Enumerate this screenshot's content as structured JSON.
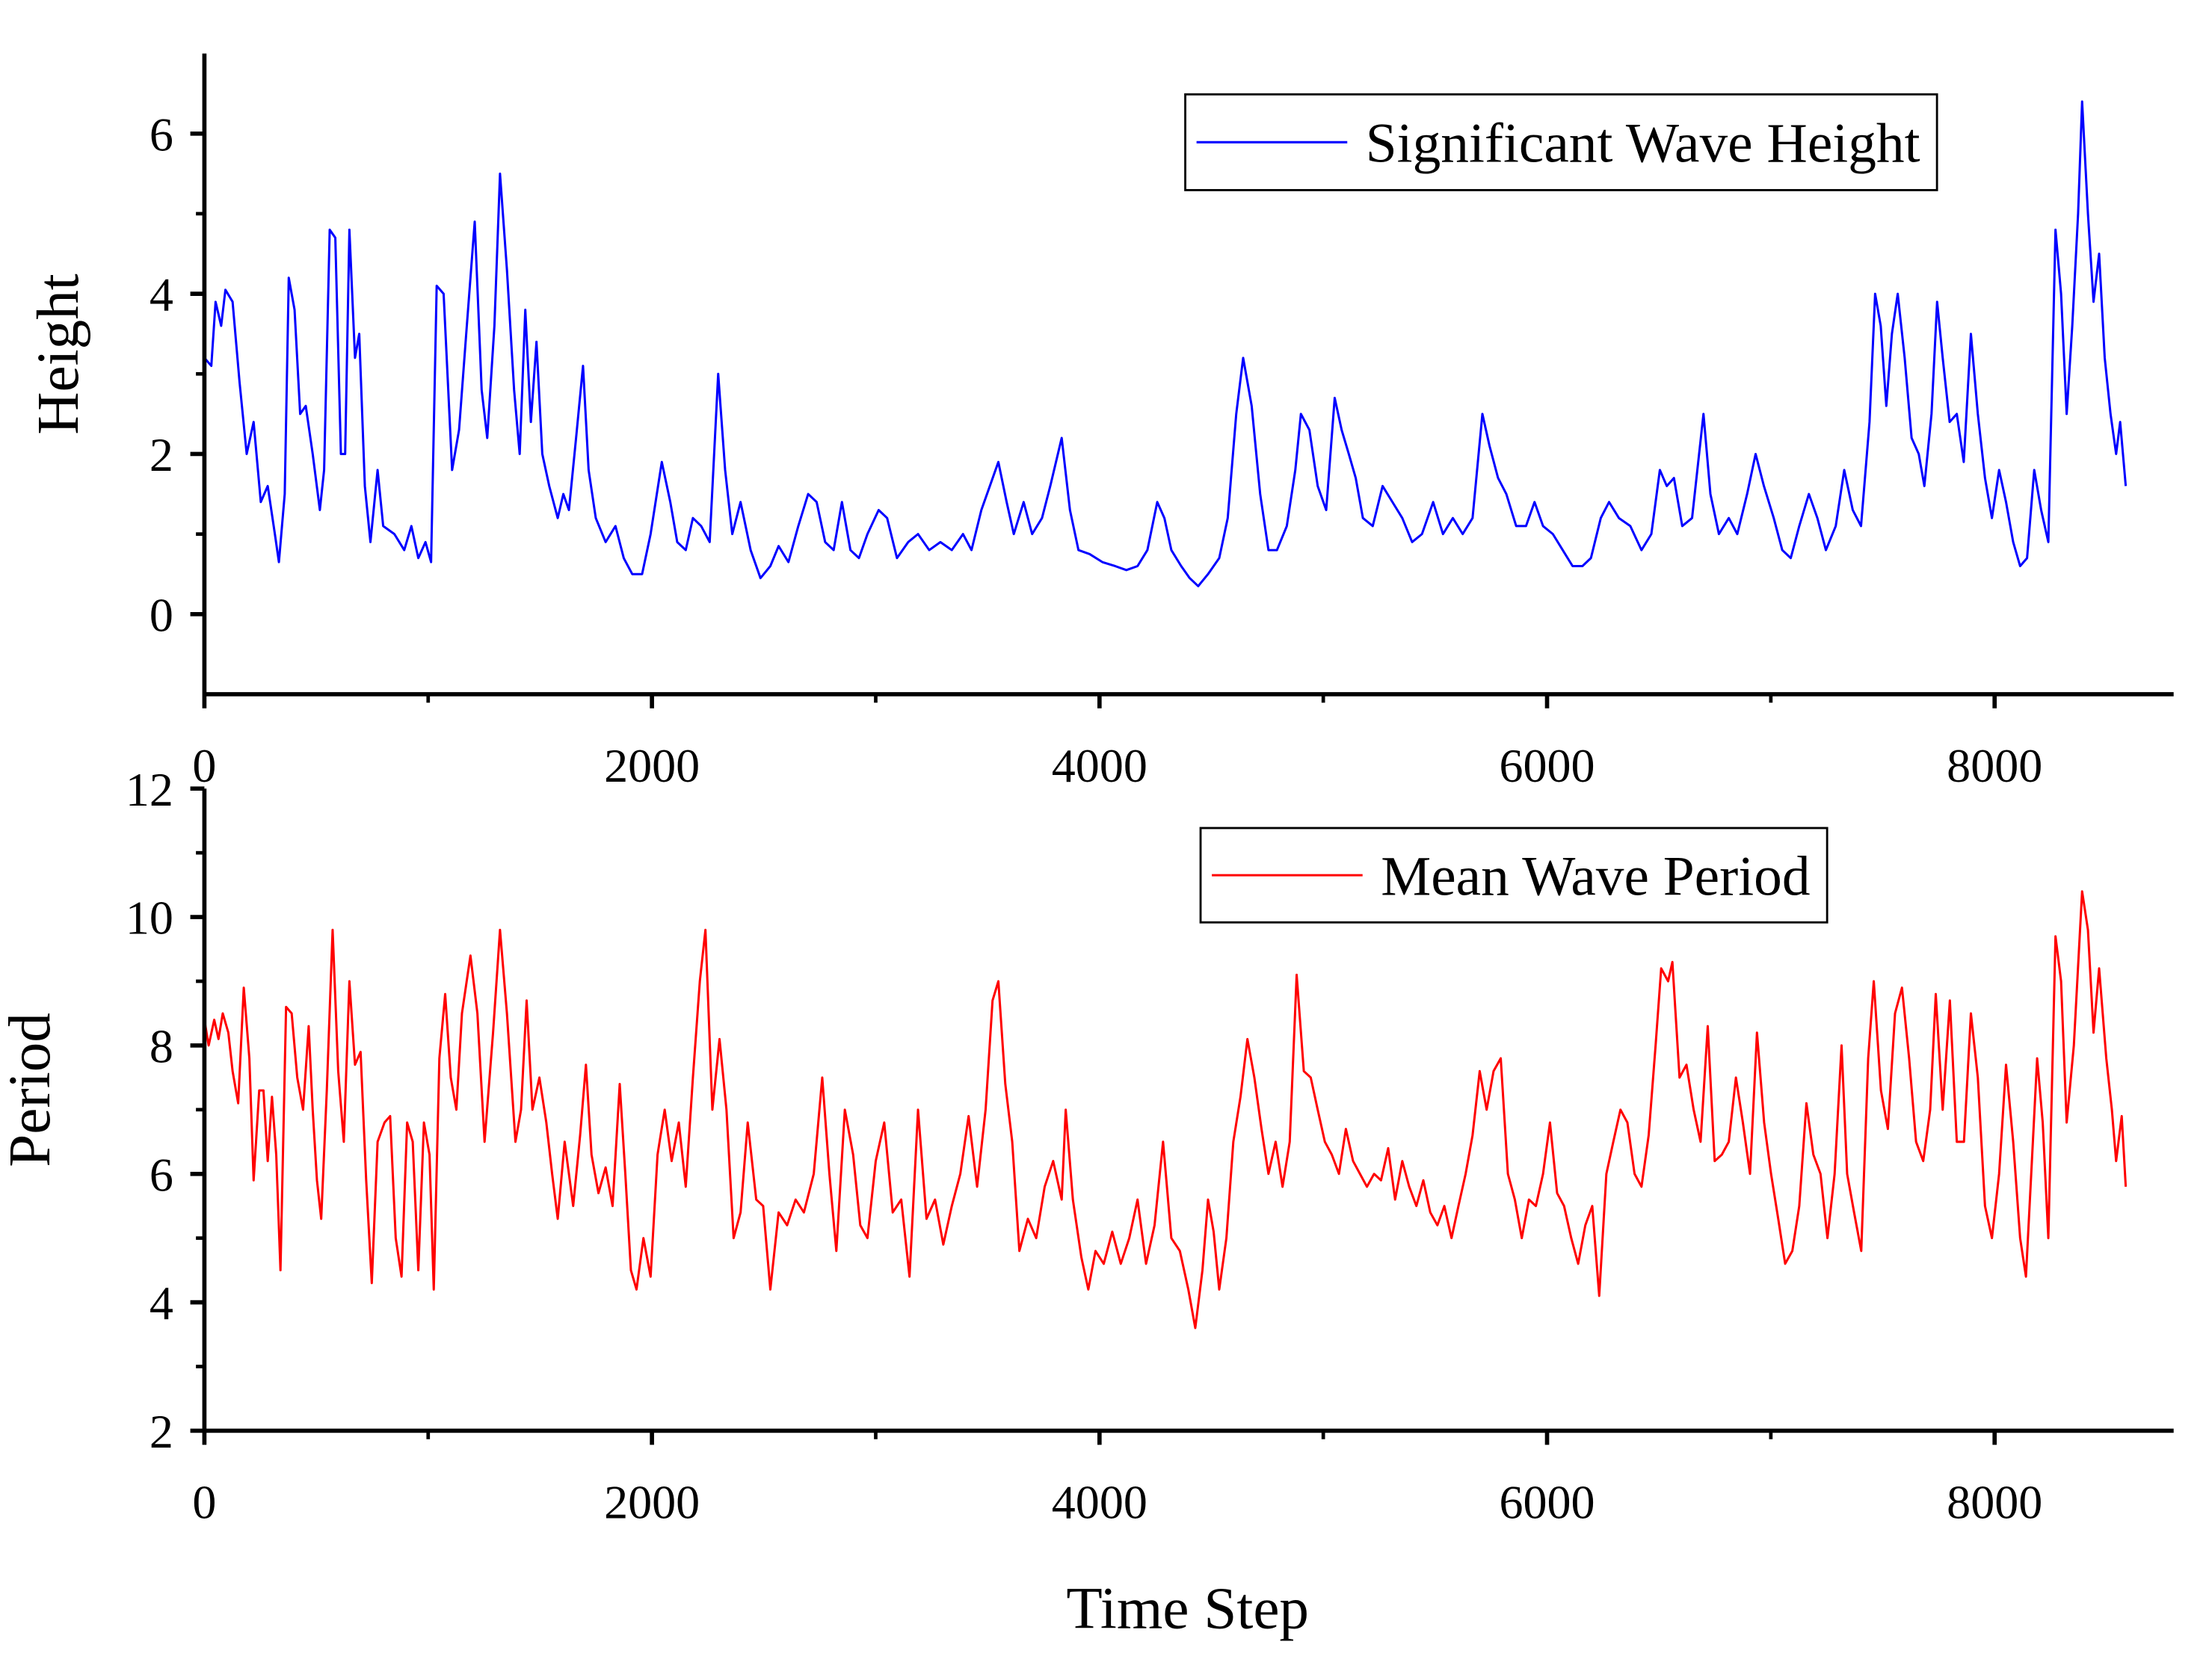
{
  "chart_data": [
    {
      "type": "line",
      "ylabel": "Height",
      "legend": "upper right",
      "xlim": [
        0,
        8800
      ],
      "xticks": [
        0,
        2000,
        4000,
        6000,
        8000
      ],
      "ylim": [
        -1,
        7
      ],
      "yticks": [
        0,
        2,
        4,
        6
      ],
      "x": [
        0,
        31,
        50,
        75,
        94,
        126,
        157,
        189,
        220,
        252,
        283,
        315,
        333,
        359,
        377,
        403,
        428,
        453,
        484,
        516,
        535,
        560,
        585,
        610,
        629,
        648,
        673,
        692,
        717,
        742,
        774,
        799,
        849,
        893,
        925,
        956,
        988,
        1013,
        1038,
        1069,
        1107,
        1138,
        1170,
        1208,
        1239,
        1264,
        1296,
        1321,
        1352,
        1384,
        1409,
        1434,
        1459,
        1484,
        1510,
        1541,
        1579,
        1604,
        1629,
        1661,
        1692,
        1717,
        1749,
        1793,
        1837,
        1874,
        1912,
        1956,
        1994,
        2044,
        2082,
        2113,
        2151,
        2183,
        2220,
        2258,
        2296,
        2327,
        2359,
        2396,
        2441,
        2485,
        2529,
        2566,
        2610,
        2654,
        2698,
        2736,
        2774,
        2812,
        2849,
        2887,
        2925,
        2963,
        3013,
        3051,
        3095,
        3145,
        3189,
        3239,
        3289,
        3340,
        3390,
        3428,
        3472,
        3510,
        3548,
        3585,
        3617,
        3661,
        3699,
        3743,
        3780,
        3831,
        3868,
        3906,
        3956,
        4013,
        4070,
        4120,
        4170,
        4214,
        4258,
        4290,
        4321,
        4365,
        4403,
        4441,
        4485,
        4535,
        4573,
        4611,
        4642,
        4680,
        4718,
        4755,
        4793,
        4837,
        4875,
        4900,
        4938,
        4975,
        5013,
        5051,
        5082,
        5114,
        5145,
        5177,
        5221,
        5265,
        5309,
        5353,
        5397,
        5441,
        5491,
        5535,
        5579,
        5623,
        5667,
        5711,
        5743,
        5781,
        5818,
        5862,
        5906,
        5944,
        5982,
        6026,
        6070,
        6114,
        6158,
        6196,
        6240,
        6277,
        6321,
        6372,
        6422,
        6466,
        6504,
        6535,
        6567,
        6604,
        6648,
        6699,
        6730,
        6768,
        6812,
        6850,
        6894,
        6932,
        6969,
        7013,
        7051,
        7089,
        7127,
        7170,
        7208,
        7246,
        7290,
        7328,
        7366,
        7403,
        7441,
        7466,
        7491,
        7516,
        7541,
        7567,
        7598,
        7629,
        7661,
        7686,
        7718,
        7743,
        7768,
        7799,
        7831,
        7862,
        7894,
        7925,
        7957,
        7988,
        8020,
        8051,
        8083,
        8114,
        8145,
        8177,
        8208,
        8240,
        8272,
        8297,
        8322,
        8347,
        8373,
        8391,
        8417,
        8442,
        8467,
        8492,
        8518,
        8543,
        8561,
        8586
      ],
      "series": [
        {
          "name": "Significant Wave Height",
          "color": "#0000ff",
          "values": [
            3.2,
            3.1,
            3.9,
            3.6,
            4.05,
            3.9,
            2.9,
            2.0,
            2.4,
            1.4,
            1.6,
            1.0,
            0.65,
            1.5,
            4.2,
            3.8,
            2.5,
            2.6,
            2.0,
            1.3,
            1.8,
            4.8,
            4.7,
            2.0,
            2.0,
            4.8,
            3.2,
            3.5,
            1.6,
            0.9,
            1.8,
            1.1,
            1.0,
            0.8,
            1.1,
            0.7,
            0.9,
            0.65,
            4.1,
            4.0,
            1.8,
            2.3,
            3.5,
            4.9,
            2.8,
            2.2,
            3.6,
            5.5,
            4.3,
            2.8,
            2.0,
            3.8,
            2.4,
            3.4,
            2.0,
            1.6,
            1.2,
            1.5,
            1.3,
            2.2,
            3.1,
            1.8,
            1.2,
            0.9,
            1.1,
            0.7,
            0.5,
            0.5,
            1.0,
            1.9,
            1.4,
            0.9,
            0.8,
            1.2,
            1.1,
            0.9,
            3.0,
            1.8,
            1.0,
            1.4,
            0.8,
            0.45,
            0.6,
            0.85,
            0.65,
            1.1,
            1.5,
            1.4,
            0.9,
            0.8,
            1.4,
            0.8,
            0.7,
            1.0,
            1.3,
            1.2,
            0.7,
            0.9,
            1.0,
            0.8,
            0.9,
            0.8,
            1.0,
            0.8,
            1.3,
            1.6,
            1.9,
            1.4,
            1.0,
            1.4,
            1.0,
            1.2,
            1.6,
            2.2,
            1.3,
            0.8,
            0.75,
            0.65,
            0.6,
            0.55,
            0.6,
            0.8,
            1.4,
            1.2,
            0.8,
            0.6,
            0.45,
            0.35,
            0.5,
            0.7,
            1.2,
            2.5,
            3.2,
            2.6,
            1.5,
            0.8,
            0.8,
            1.1,
            1.8,
            2.5,
            2.3,
            1.6,
            1.3,
            2.7,
            2.3,
            2.0,
            1.7,
            1.2,
            1.1,
            1.6,
            1.4,
            1.2,
            0.9,
            1.0,
            1.4,
            1.0,
            1.2,
            1.0,
            1.2,
            2.5,
            2.1,
            1.7,
            1.5,
            1.1,
            1.1,
            1.4,
            1.1,
            1.0,
            0.8,
            0.6,
            0.6,
            0.7,
            1.2,
            1.4,
            1.2,
            1.1,
            0.8,
            1.0,
            1.8,
            1.6,
            1.7,
            1.1,
            1.2,
            2.5,
            1.5,
            1.0,
            1.2,
            1.0,
            1.5,
            2.0,
            1.6,
            1.2,
            0.8,
            0.7,
            1.1,
            1.5,
            1.2,
            0.8,
            1.1,
            1.8,
            1.3,
            1.1,
            2.4,
            4.0,
            3.6,
            2.6,
            3.5,
            4.0,
            3.2,
            2.2,
            2.0,
            1.6,
            2.5,
            3.9,
            3.2,
            2.4,
            2.5,
            1.9,
            3.5,
            2.5,
            1.7,
            1.2,
            1.8,
            1.4,
            0.9,
            0.6,
            0.7,
            1.8,
            1.3,
            0.9,
            4.8,
            4.0,
            2.5,
            3.6,
            5.0,
            6.4,
            5.0,
            3.9,
            4.5,
            3.2,
            2.5,
            2.0,
            2.4,
            1.6
          ]
        }
      ]
    },
    {
      "type": "line",
      "ylabel": "Period",
      "xlabel": "Time Step",
      "legend": "upper right",
      "xlim": [
        0,
        8800
      ],
      "xticks": [
        0,
        2000,
        4000,
        6000,
        8000
      ],
      "ylim": [
        2,
        12
      ],
      "yticks": [
        2,
        4,
        6,
        8,
        10,
        12
      ],
      "x": [
        0,
        19,
        44,
        63,
        82,
        107,
        126,
        151,
        176,
        201,
        220,
        245,
        264,
        283,
        302,
        321,
        340,
        365,
        390,
        415,
        441,
        466,
        484,
        503,
        522,
        547,
        573,
        598,
        623,
        648,
        673,
        698,
        723,
        748,
        774,
        805,
        830,
        855,
        881,
        906,
        931,
        956,
        981,
        1006,
        1025,
        1050,
        1076,
        1101,
        1126,
        1151,
        1189,
        1220,
        1252,
        1290,
        1321,
        1352,
        1390,
        1415,
        1440,
        1466,
        1497,
        1528,
        1554,
        1579,
        1610,
        1648,
        1679,
        1705,
        1730,
        1761,
        1793,
        1824,
        1856,
        1881,
        1906,
        1931,
        1962,
        1994,
        2025,
        2057,
        2088,
        2120,
        2151,
        2183,
        2214,
        2239,
        2270,
        2302,
        2333,
        2365,
        2396,
        2428,
        2466,
        2497,
        2529,
        2566,
        2604,
        2642,
        2679,
        2723,
        2761,
        2793,
        2824,
        2862,
        2899,
        2931,
        2963,
        3000,
        3038,
        3076,
        3114,
        3151,
        3189,
        3227,
        3265,
        3302,
        3340,
        3378,
        3415,
        3453,
        3491,
        3522,
        3548,
        3579,
        3610,
        3642,
        3680,
        3717,
        3755,
        3793,
        3831,
        3849,
        3881,
        3919,
        3950,
        3982,
        4019,
        4057,
        4095,
        4133,
        4170,
        4208,
        4246,
        4284,
        4321,
        4359,
        4397,
        4428,
        4460,
        4485,
        4510,
        4535,
        4567,
        4598,
        4630,
        4661,
        4692,
        4724,
        4755,
        4787,
        4818,
        4850,
        4881,
        4913,
        4944,
        4975,
        5007,
        5038,
        5070,
        5101,
        5133,
        5164,
        5195,
        5227,
        5258,
        5290,
        5321,
        5353,
        5384,
        5416,
        5447,
        5478,
        5510,
        5541,
        5573,
        5604,
        5636,
        5667,
        5699,
        5730,
        5761,
        5793,
        5825,
        5856,
        5887,
        5919,
        5950,
        5982,
        6013,
        6045,
        6076,
        6108,
        6139,
        6171,
        6202,
        6233,
        6265,
        6296,
        6328,
        6359,
        6391,
        6422,
        6454,
        6485,
        6510,
        6541,
        6560,
        6592,
        6623,
        6655,
        6686,
        6718,
        6749,
        6781,
        6812,
        6844,
        6875,
        6907,
        6938,
        6970,
        7001,
        7033,
        7064,
        7096,
        7127,
        7159,
        7190,
        7222,
        7253,
        7285,
        7316,
        7341,
        7372,
        7404,
        7435,
        7460,
        7492,
        7523,
        7555,
        7586,
        7618,
        7649,
        7681,
        7712,
        7737,
        7768,
        7800,
        7831,
        7863,
        7894,
        7925,
        7957,
        7988,
        8020,
        8051,
        8083,
        8114,
        8140,
        8171,
        8190,
        8215,
        8240,
        8272,
        8297,
        8322,
        8354,
        8391,
        8417,
        8442,
        8467,
        8499,
        8524,
        8543,
        8568,
        8586
      ],
      "series": [
        {
          "name": "Mean Wave Period",
          "color": "#ff0000",
          "values": [
            8.4,
            8.0,
            8.4,
            8.1,
            8.5,
            8.2,
            7.6,
            7.1,
            8.9,
            7.8,
            5.9,
            7.3,
            7.3,
            6.2,
            7.2,
            6.3,
            4.5,
            8.6,
            8.5,
            7.5,
            7.0,
            8.3,
            7.0,
            5.9,
            5.3,
            7.3,
            9.8,
            7.6,
            6.5,
            9.0,
            7.7,
            7.9,
            5.9,
            4.3,
            6.5,
            6.8,
            6.9,
            5.0,
            4.4,
            6.8,
            6.5,
            4.5,
            6.8,
            6.3,
            4.2,
            7.8,
            8.8,
            7.5,
            7.0,
            8.5,
            9.4,
            8.5,
            6.5,
            8.2,
            9.8,
            8.5,
            6.5,
            7.0,
            8.7,
            7.0,
            7.5,
            6.8,
            6.0,
            5.3,
            6.5,
            5.5,
            6.6,
            7.7,
            6.3,
            5.7,
            6.1,
            5.5,
            7.4,
            6.0,
            4.5,
            4.2,
            5.0,
            4.4,
            6.3,
            7.0,
            6.2,
            6.8,
            5.8,
            7.5,
            9.0,
            9.8,
            7.0,
            8.1,
            7.0,
            5.0,
            5.4,
            6.8,
            5.6,
            5.5,
            4.2,
            5.4,
            5.2,
            5.6,
            5.4,
            6.0,
            7.5,
            6.0,
            4.8,
            7.0,
            6.3,
            5.2,
            5.0,
            6.2,
            6.8,
            5.4,
            5.6,
            4.4,
            7.0,
            5.3,
            5.6,
            4.9,
            5.5,
            6.0,
            6.9,
            5.8,
            7.0,
            8.7,
            9.0,
            7.4,
            6.5,
            4.8,
            5.3,
            5.0,
            5.8,
            6.2,
            5.6,
            7.0,
            5.6,
            4.7,
            4.2,
            4.8,
            4.6,
            5.1,
            4.6,
            5.0,
            5.6,
            4.6,
            5.2,
            6.5,
            5.0,
            4.8,
            4.2,
            3.6,
            4.5,
            5.6,
            5.1,
            4.2,
            5.0,
            6.5,
            7.2,
            8.1,
            7.5,
            6.7,
            6.0,
            6.5,
            5.8,
            6.5,
            9.1,
            7.6,
            7.5,
            7.0,
            6.5,
            6.3,
            6.0,
            6.7,
            6.2,
            6.0,
            5.8,
            6.0,
            5.9,
            6.4,
            5.6,
            6.2,
            5.8,
            5.5,
            5.9,
            5.4,
            5.2,
            5.5,
            5.0,
            5.5,
            6.0,
            6.6,
            7.6,
            7.0,
            7.6,
            7.8,
            6.0,
            5.6,
            5.0,
            5.6,
            5.5,
            6.0,
            6.8,
            5.7,
            5.5,
            5.0,
            4.6,
            5.2,
            5.5,
            4.1,
            6.0,
            6.5,
            7.0,
            6.8,
            6.0,
            5.8,
            6.6,
            8.0,
            9.2,
            9.0,
            9.3,
            7.5,
            7.7,
            7.0,
            6.5,
            8.3,
            6.2,
            6.3,
            6.5,
            7.5,
            6.8,
            6.0,
            8.2,
            6.8,
            6.0,
            5.3,
            4.6,
            4.8,
            5.5,
            7.1,
            6.3,
            6.0,
            5.0,
            6.0,
            8.0,
            6.0,
            5.4,
            4.8,
            7.8,
            9.0,
            7.3,
            6.7,
            8.5,
            8.9,
            7.8,
            6.5,
            6.2,
            7.0,
            8.8,
            7.0,
            8.7,
            6.5,
            6.5,
            8.5,
            7.5,
            5.5,
            5.0,
            6.0,
            7.7,
            6.5,
            5.0,
            4.4,
            6.5,
            7.8,
            6.8,
            5.0,
            9.7,
            9.0,
            6.8,
            8.0,
            10.4,
            9.8,
            8.2,
            9.2,
            7.8,
            7.0,
            6.2,
            6.9,
            5.8
          ]
        }
      ]
    }
  ]
}
